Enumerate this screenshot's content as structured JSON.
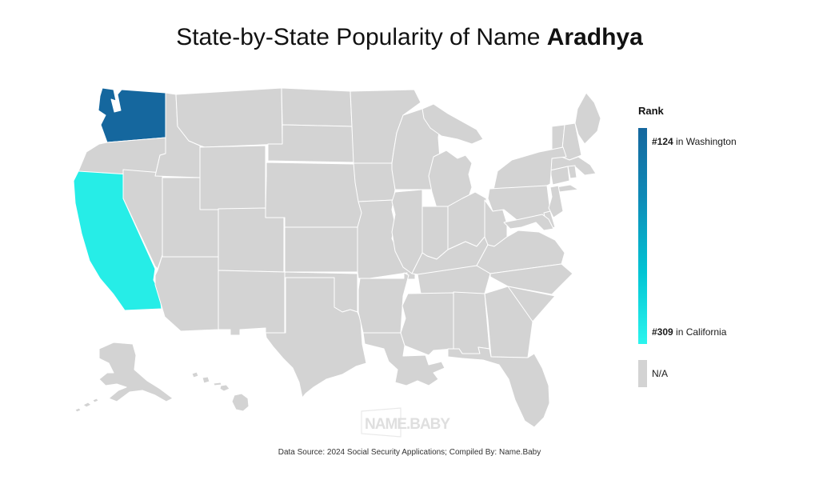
{
  "title": {
    "prefix": "State-by-State Popularity of Name ",
    "name": "Aradhya"
  },
  "legend": {
    "heading": "Rank",
    "top": {
      "rank": "#124",
      "suffix": " in Washington"
    },
    "bottom": {
      "rank": "#309",
      "suffix": " in California"
    },
    "na_label": "N/A"
  },
  "watermark": "NAME.BABY",
  "footer": "Data Source: 2024 Social Security Applications; Compiled By: Name.Baby",
  "colors": {
    "highlight_top": "#15679E",
    "highlight_bottom": "#26EDE7",
    "na": "#D3D3D3",
    "border": "#FFFFFF",
    "gradient": [
      "#15679E",
      "#0E8CB8",
      "#00C4D4",
      "#2BF5EE"
    ]
  },
  "chart_data": {
    "type": "heatmap",
    "subtype": "usa-state-choropleth",
    "title": "State-by-State Popularity of Name Aradhya",
    "series": [
      {
        "state": "Washington",
        "abbr": "WA",
        "rank": 124
      },
      {
        "state": "California",
        "abbr": "CA",
        "rank": 309
      }
    ],
    "all_other_states": "N/A",
    "colorbar": {
      "label": "Rank",
      "top_label": "#124 in Washington",
      "bottom_label": "#309 in California",
      "top_color": "#15679E",
      "bottom_color": "#2BF5EE",
      "na_color": "#D3D3D3"
    },
    "legend_position": "right"
  },
  "map": {
    "states": [
      {
        "id": "WA",
        "name": "Washington",
        "category": "highlight_top"
      },
      {
        "id": "CA",
        "name": "California",
        "category": "highlight_bottom"
      },
      {
        "id": "OR",
        "name": "Oregon",
        "category": "na"
      },
      {
        "id": "NV",
        "name": "Nevada",
        "category": "na"
      },
      {
        "id": "ID",
        "name": "Idaho",
        "category": "na"
      },
      {
        "id": "MT",
        "name": "Montana",
        "category": "na"
      },
      {
        "id": "WY",
        "name": "Wyoming",
        "category": "na"
      },
      {
        "id": "UT",
        "name": "Utah",
        "category": "na"
      },
      {
        "id": "CO",
        "name": "Colorado",
        "category": "na"
      },
      {
        "id": "AZ",
        "name": "Arizona",
        "category": "na"
      },
      {
        "id": "NM",
        "name": "New Mexico",
        "category": "na"
      },
      {
        "id": "ND",
        "name": "North Dakota",
        "category": "na"
      },
      {
        "id": "SD",
        "name": "South Dakota",
        "category": "na"
      },
      {
        "id": "NE",
        "name": "Nebraska",
        "category": "na"
      },
      {
        "id": "KS",
        "name": "Kansas",
        "category": "na"
      },
      {
        "id": "OK",
        "name": "Oklahoma",
        "category": "na"
      },
      {
        "id": "TX",
        "name": "Texas",
        "category": "na"
      },
      {
        "id": "MN",
        "name": "Minnesota",
        "category": "na"
      },
      {
        "id": "IA",
        "name": "Iowa",
        "category": "na"
      },
      {
        "id": "MO",
        "name": "Missouri",
        "category": "na"
      },
      {
        "id": "AR",
        "name": "Arkansas",
        "category": "na"
      },
      {
        "id": "LA",
        "name": "Louisiana",
        "category": "na"
      },
      {
        "id": "WI",
        "name": "Wisconsin",
        "category": "na"
      },
      {
        "id": "IL",
        "name": "Illinois",
        "category": "na"
      },
      {
        "id": "MI",
        "name": "Michigan",
        "category": "na"
      },
      {
        "id": "IN",
        "name": "Indiana",
        "category": "na"
      },
      {
        "id": "OH",
        "name": "Ohio",
        "category": "na"
      },
      {
        "id": "KY",
        "name": "Kentucky",
        "category": "na"
      },
      {
        "id": "TN",
        "name": "Tennessee",
        "category": "na"
      },
      {
        "id": "WV",
        "name": "West Virginia",
        "category": "na"
      },
      {
        "id": "VA",
        "name": "Virginia",
        "category": "na"
      },
      {
        "id": "NC",
        "name": "North Carolina",
        "category": "na"
      },
      {
        "id": "SC",
        "name": "South Carolina",
        "category": "na"
      },
      {
        "id": "GA",
        "name": "Georgia",
        "category": "na"
      },
      {
        "id": "AL",
        "name": "Alabama",
        "category": "na"
      },
      {
        "id": "MS",
        "name": "Mississippi",
        "category": "na"
      },
      {
        "id": "FL",
        "name": "Florida",
        "category": "na"
      },
      {
        "id": "VT",
        "name": "Vermont",
        "category": "na"
      },
      {
        "id": "NH",
        "name": "New Hampshire",
        "category": "na"
      },
      {
        "id": "ME",
        "name": "Maine",
        "category": "na"
      },
      {
        "id": "MA",
        "name": "Massachusetts",
        "category": "na"
      },
      {
        "id": "RI",
        "name": "Rhode Island",
        "category": "na"
      },
      {
        "id": "CT",
        "name": "Connecticut",
        "category": "na"
      },
      {
        "id": "NY",
        "name": "New York",
        "category": "na"
      },
      {
        "id": "PA",
        "name": "Pennsylvania",
        "category": "na"
      },
      {
        "id": "NJ",
        "name": "New Jersey",
        "category": "na"
      },
      {
        "id": "DE",
        "name": "Delaware",
        "category": "na"
      },
      {
        "id": "MD",
        "name": "Maryland",
        "category": "na"
      },
      {
        "id": "AK",
        "name": "Alaska",
        "category": "na"
      },
      {
        "id": "HI",
        "name": "Hawaii",
        "category": "na"
      }
    ]
  }
}
